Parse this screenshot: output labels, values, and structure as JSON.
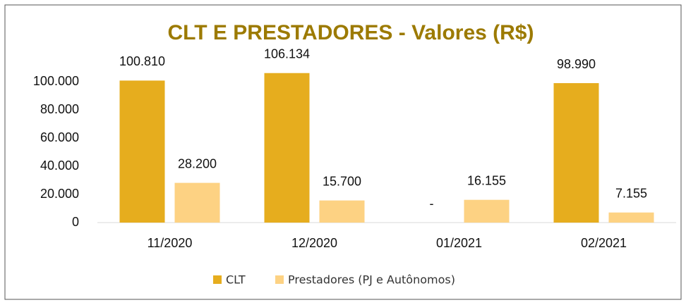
{
  "chart_data": {
    "type": "bar",
    "title": "CLT E PRESTADORES - Valores (R$)",
    "categories": [
      "11/2020",
      "12/2020",
      "01/2021",
      "02/2021"
    ],
    "series": [
      {
        "name": "CLT",
        "color": "#e6ad1e",
        "values": [
          100810,
          106134,
          0,
          98990
        ],
        "value_labels": [
          "100.810",
          "106.134",
          "-",
          "98.990"
        ]
      },
      {
        "name": "Prestadores (PJ e Autônomos)",
        "color": "#fdd283",
        "values": [
          28200,
          15700,
          16155,
          7155
        ],
        "value_labels": [
          "28.200",
          "15.700",
          "16.155",
          "7.155"
        ]
      }
    ],
    "ylim": [
      0,
      120000
    ],
    "yticks": [
      0,
      {
        "value": 20000,
        "label": "20.000"
      },
      {
        "value": 40000,
        "label": "40.000"
      },
      {
        "value": 60000,
        "label": "60.000"
      },
      {
        "value": 80000,
        "label": "80.000"
      },
      {
        "value": 100000,
        "label": "100.000"
      }
    ],
    "grid": false,
    "legend": "bottom"
  }
}
